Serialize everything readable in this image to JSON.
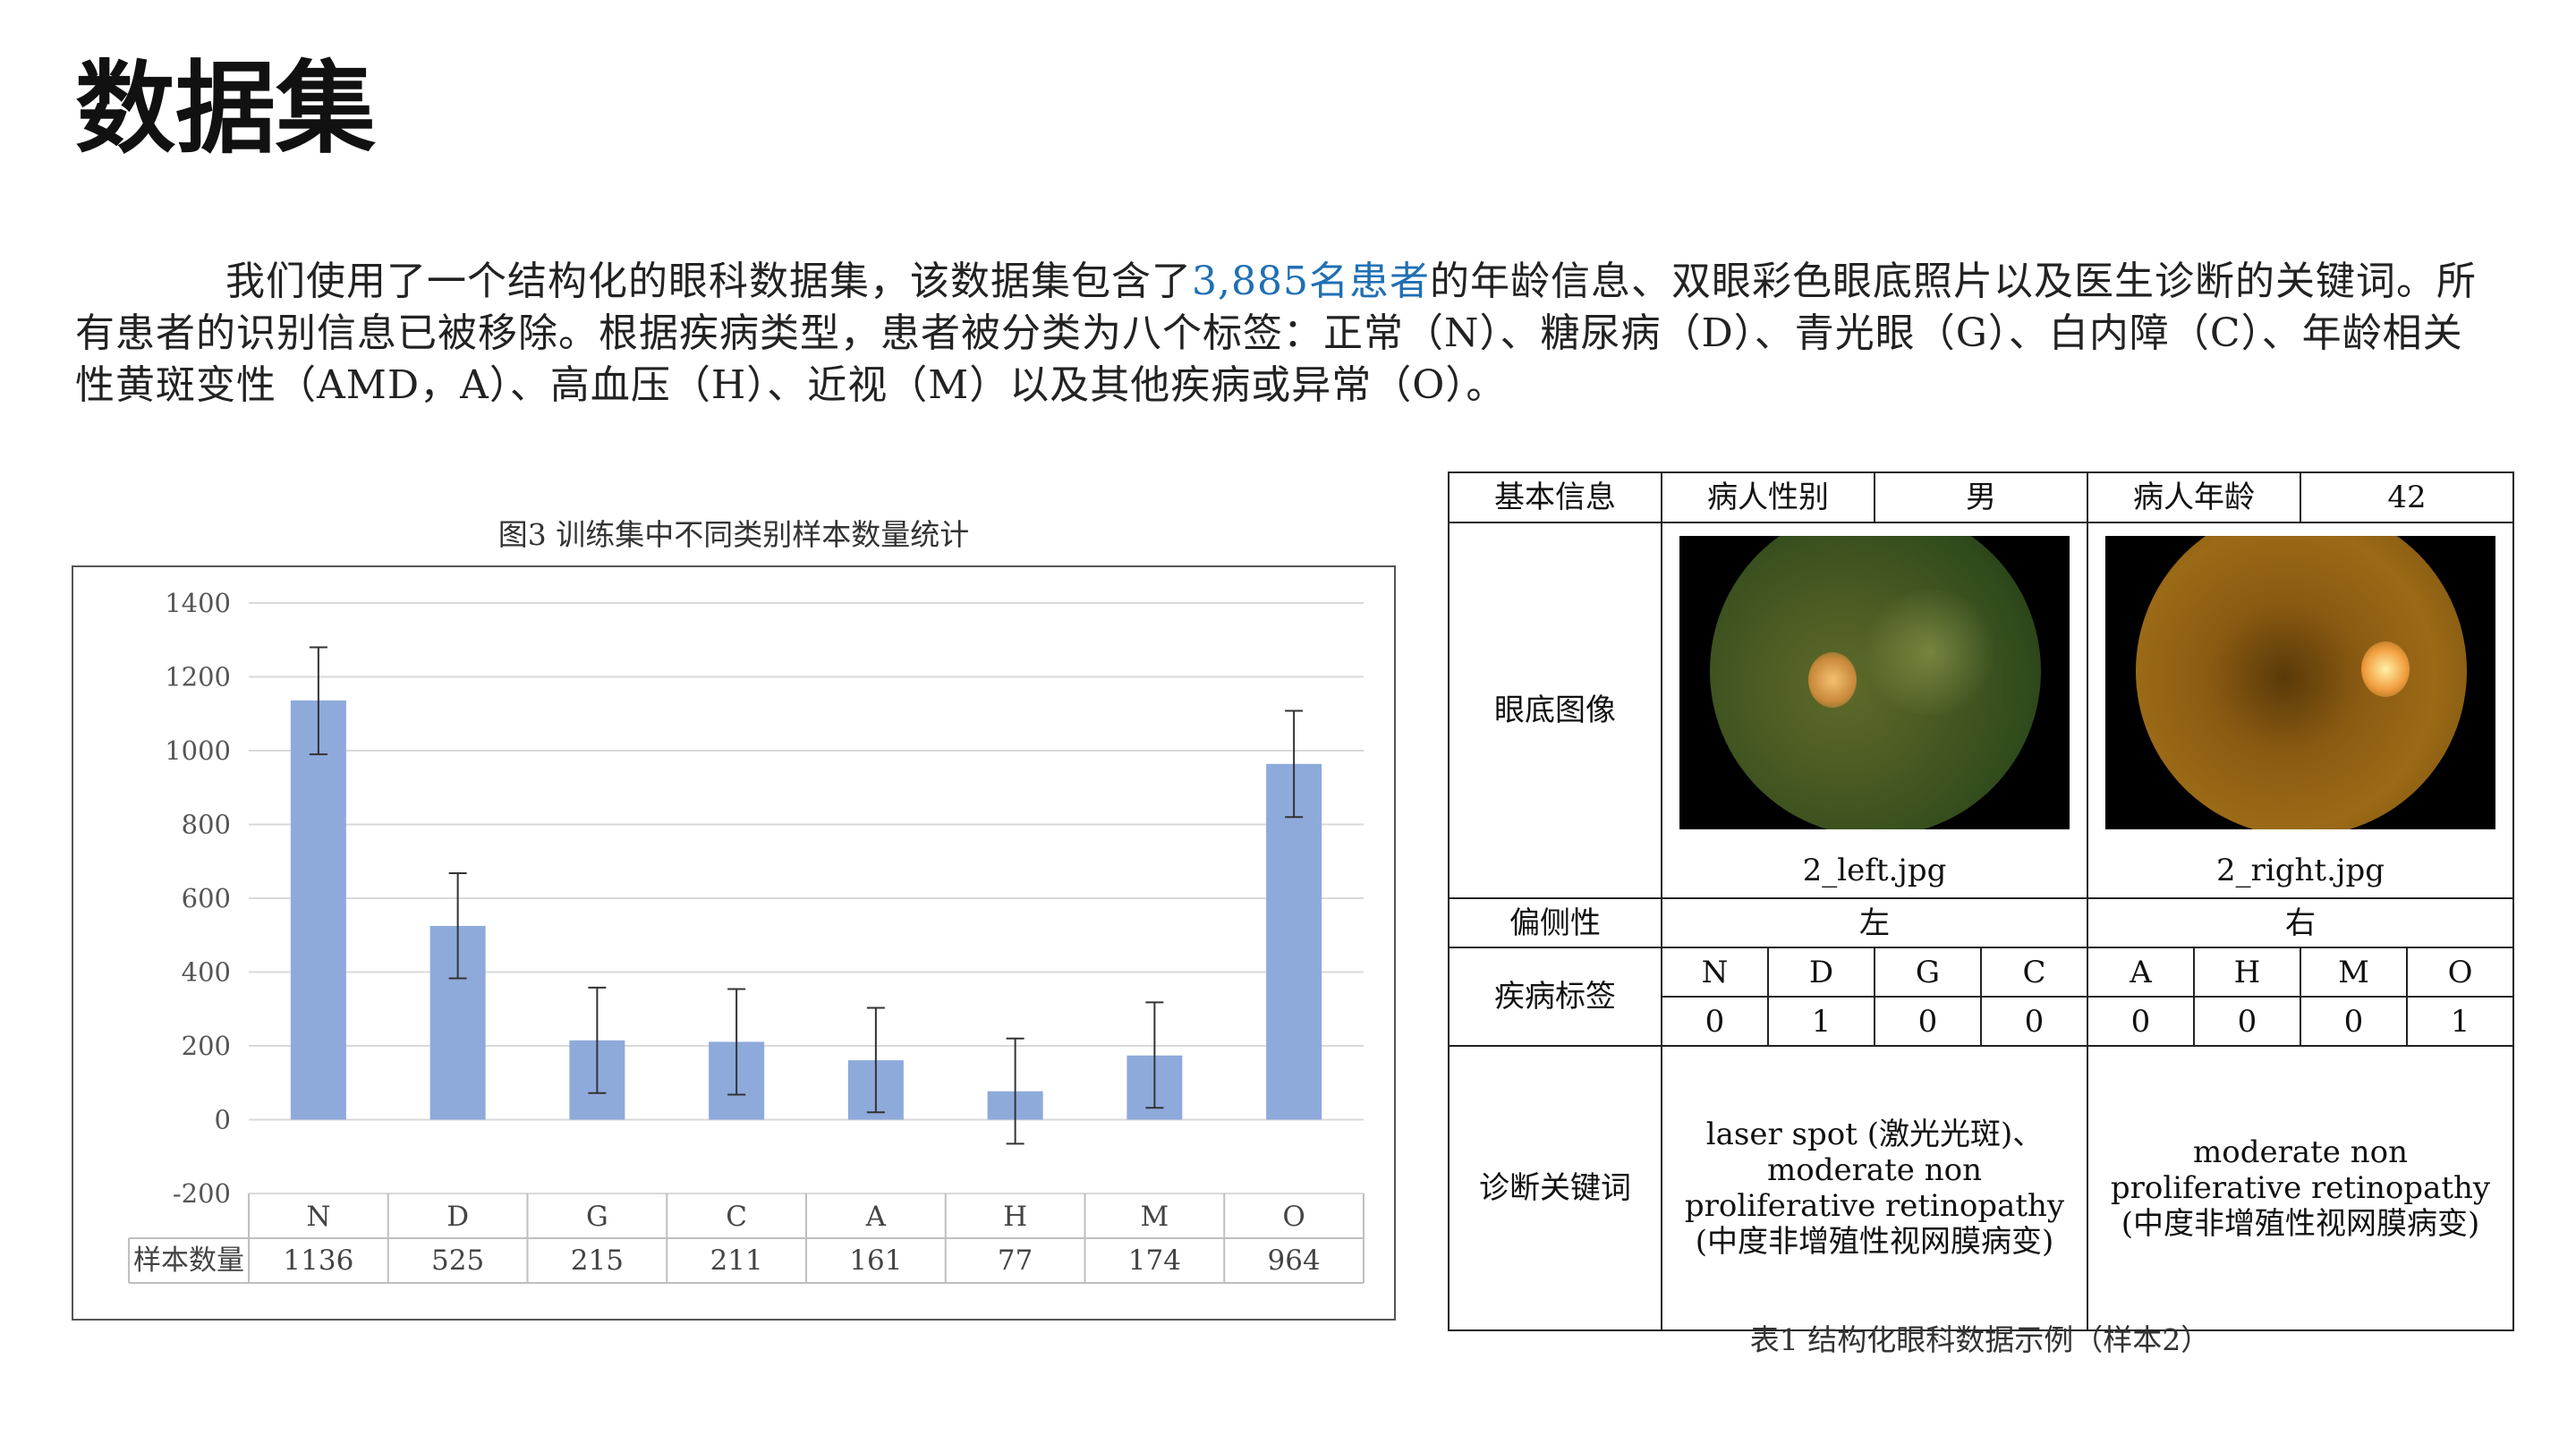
{
  "page_title": "数据集",
  "intro": {
    "before": "我们使用了一个结构化的眼科数据集，该数据集包含了",
    "highlight": "3,885名患者",
    "after": "的年龄信息、双眼彩色眼底照片以及医生诊断的关键词。所有患者的识别信息已被移除。根据疾病类型，患者被分类为八个标签：正常（N）、糖尿病（D）、青光眼（G）、白内障（C）、年龄相关性黄斑变性（AMD，A）、高血压（H）、近视（M）以及其他疾病或异常（O）。"
  },
  "colors": {
    "bar": "#8eaadb",
    "highlight": "#1f6fb3",
    "grid": "#d9d9d9"
  },
  "chart_data": {
    "type": "bar",
    "title": "图3 训练集中不同类别样本数量统计",
    "categories": [
      "N",
      "D",
      "G",
      "C",
      "A",
      "H",
      "M",
      "O"
    ],
    "values": [
      1136,
      525,
      215,
      211,
      161,
      77,
      174,
      964
    ],
    "error_bars": [
      [
        990,
        1280
      ],
      [
        383,
        668
      ],
      [
        72,
        358
      ],
      [
        68,
        354
      ],
      [
        20,
        303
      ],
      [
        -65,
        220
      ],
      [
        32,
        318
      ],
      [
        820,
        1108
      ]
    ],
    "ylim": [
      -200,
      1400
    ],
    "yticks": [
      1400,
      1200,
      1000,
      800,
      600,
      400,
      200,
      0,
      -200
    ],
    "grid": true,
    "data_table_label": "样本数量"
  },
  "table": {
    "basic_info": "基本信息",
    "gender_label": "病人性别",
    "gender_value": "男",
    "age_label": "病人年龄",
    "age_value": "42",
    "image_label": "眼底图像",
    "left_file": "2_left.jpg",
    "right_file": "2_right.jpg",
    "laterality_label": "偏侧性",
    "left_side": "左",
    "right_side": "右",
    "disease_label": "疾病标签",
    "labels": [
      "N",
      "D",
      "G",
      "C",
      "A",
      "H",
      "M",
      "O"
    ],
    "label_values": [
      "0",
      "1",
      "0",
      "0",
      "0",
      "0",
      "0",
      "1"
    ],
    "keywords_label": "诊断关键词",
    "left_keywords": "laser spot (激光光斑)、moderate non proliferative retinopathy (中度非增殖性视网膜病变)",
    "right_keywords": "moderate non proliferative retinopathy (中度非增殖性视网膜病变)",
    "caption": "表1 结构化眼科数据示例（样本2）"
  }
}
